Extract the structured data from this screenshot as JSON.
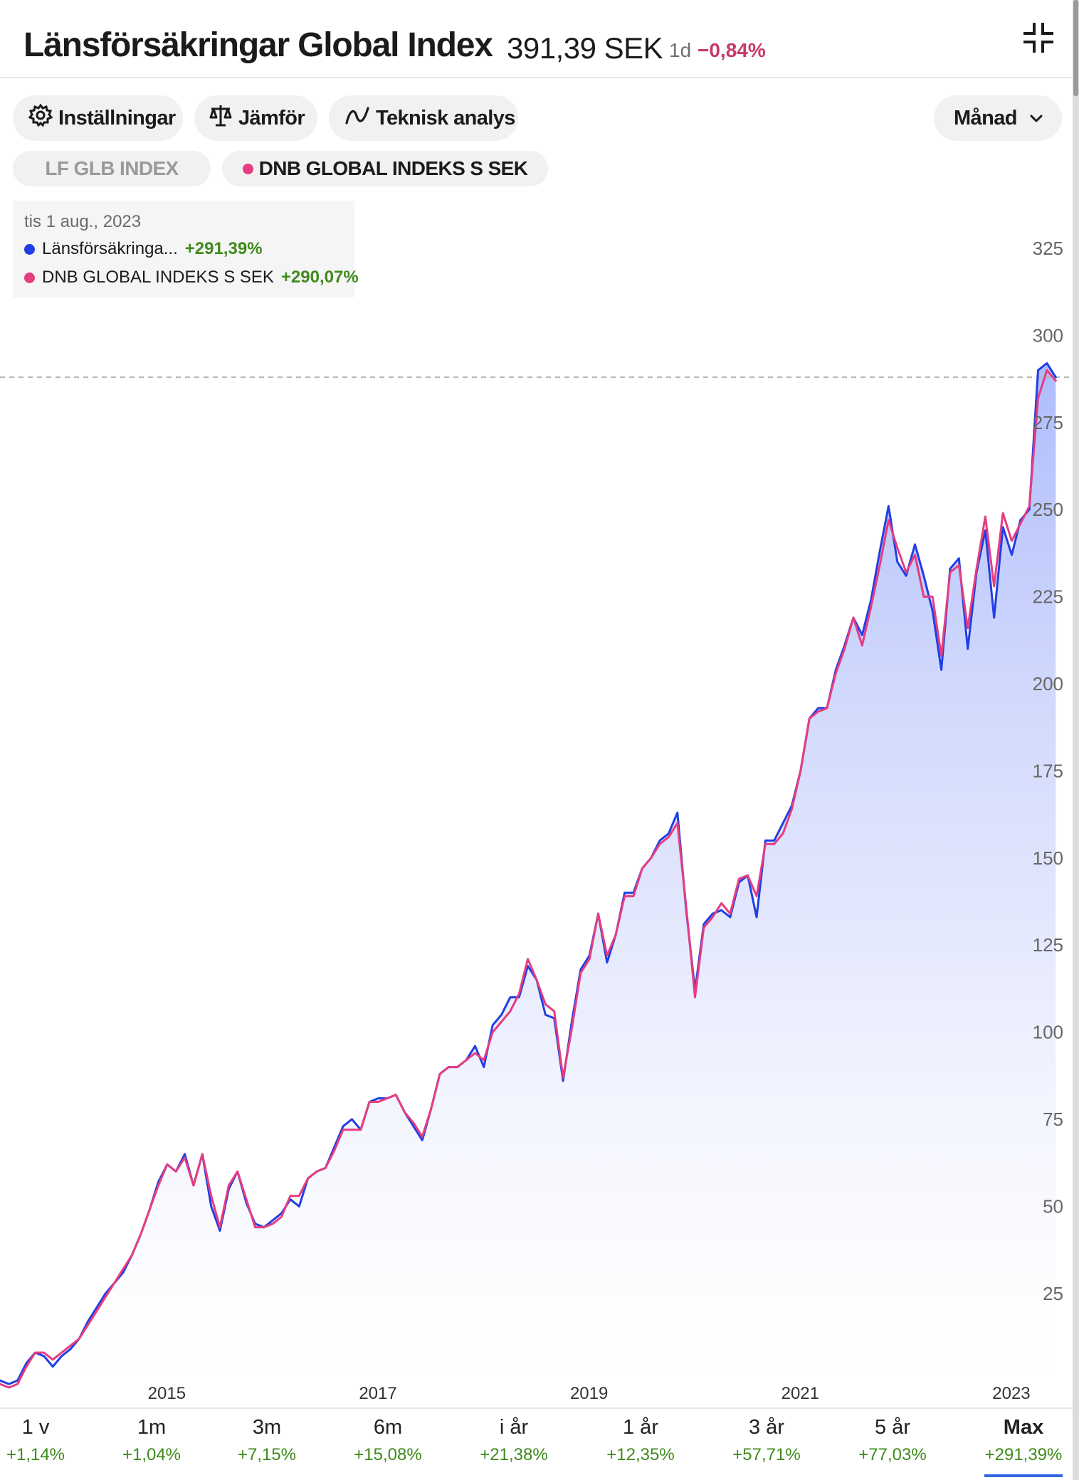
{
  "header": {
    "title": "Länsförsäkringar Global Index",
    "price": "391,39 SEK",
    "period": "1d",
    "change": "−0,84%"
  },
  "toolbar": {
    "settings_label": "Inställningar",
    "compare_label": "Jämför",
    "technical_label": "Teknisk analys",
    "interval_label": "Månad"
  },
  "compare_tags": [
    "LF GLB INDEX",
    "DNB GLOBAL INDEKS S SEK"
  ],
  "tooltip": {
    "date": "tis 1 aug., 2023",
    "series1_name": "Länsförsäkringa...",
    "series1_value": "+291,39%",
    "series2_name": "DNB GLOBAL INDEKS S SEK",
    "series2_value": "+290,07%"
  },
  "timeframes": [
    {
      "label": "1 v",
      "value": "+1,14%"
    },
    {
      "label": "1m",
      "value": "+1,04%"
    },
    {
      "label": "3m",
      "value": "+7,15%"
    },
    {
      "label": "6m",
      "value": "+15,08%"
    },
    {
      "label": "i år",
      "value": "+21,38%"
    },
    {
      "label": "1 år",
      "value": "+12,35%"
    },
    {
      "label": "3 år",
      "value": "+57,71%"
    },
    {
      "label": "5 år",
      "value": "+77,03%"
    },
    {
      "label": "Max",
      "value": "+291,39%"
    }
  ],
  "colors": {
    "series1": "#1f3ee6",
    "series2": "#e63d80",
    "positive": "#3f8a1c",
    "negative": "#c8386b"
  },
  "chart_data": {
    "type": "line",
    "x_start": 2013.42,
    "x_step_months": 1,
    "xlim": [
      2013.42,
      2023.58
    ],
    "ylim": [
      -2,
      335
    ],
    "x_ticks": [
      "2015",
      "2017",
      "2019",
      "2021",
      "2023"
    ],
    "y_ticks": [
      25,
      50,
      75,
      100,
      125,
      150,
      175,
      200,
      225,
      250,
      275,
      300,
      325
    ],
    "reference_value": 288,
    "fill_series": 0,
    "series": [
      {
        "name": "Länsförsäkringa...",
        "values": [
          0,
          -1,
          0,
          5,
          8,
          7,
          4,
          7,
          9,
          12,
          17,
          21,
          25,
          28,
          31,
          36,
          42,
          49,
          57,
          62,
          60,
          65,
          56,
          65,
          50,
          43,
          55,
          60,
          51,
          45,
          44,
          46,
          48,
          52,
          50,
          58,
          60,
          61,
          67,
          73,
          75,
          72,
          80,
          81,
          81,
          82,
          77,
          73,
          69,
          78,
          88,
          90,
          90,
          92,
          96,
          90,
          102,
          105,
          110,
          110,
          119,
          115,
          105,
          104,
          86,
          103,
          118,
          122,
          134,
          120,
          128,
          140,
          140,
          147,
          150,
          155,
          157,
          163,
          135,
          112,
          131,
          134,
          135,
          133,
          143,
          145,
          133,
          155,
          155,
          160,
          165,
          175,
          190,
          193,
          193,
          204,
          211,
          219,
          214,
          224,
          238,
          251,
          235,
          231,
          240,
          231,
          221,
          204,
          233,
          236,
          210,
          232,
          244,
          219,
          245,
          237,
          247,
          250,
          290,
          292,
          288
        ]
      },
      {
        "name": "DNB GLOBAL INDEKS S SEK",
        "values": [
          -1,
          -2,
          -1,
          4,
          8,
          8,
          6,
          8,
          10,
          12,
          16,
          20,
          24,
          28,
          32,
          36,
          42,
          49,
          56,
          62,
          60,
          64,
          56,
          65,
          53,
          44,
          56,
          60,
          52,
          44,
          44,
          45,
          47,
          53,
          53,
          58,
          60,
          61,
          66,
          72,
          72,
          72,
          80,
          80,
          81,
          82,
          77,
          74,
          70,
          78,
          88,
          90,
          90,
          92,
          94,
          92,
          100,
          103,
          106,
          111,
          121,
          115,
          108,
          106,
          87,
          101,
          117,
          121,
          134,
          122,
          128,
          139,
          139,
          147,
          150,
          154,
          156,
          160,
          136,
          110,
          130,
          133,
          137,
          134,
          144,
          145,
          139,
          154,
          154,
          157,
          164,
          175,
          190,
          192,
          193,
          203,
          210,
          219,
          211,
          222,
          234,
          247,
          239,
          232,
          237,
          225,
          225,
          208,
          232,
          234,
          216,
          233,
          248,
          228,
          249,
          241,
          246,
          251,
          282,
          290,
          287
        ]
      }
    ]
  }
}
